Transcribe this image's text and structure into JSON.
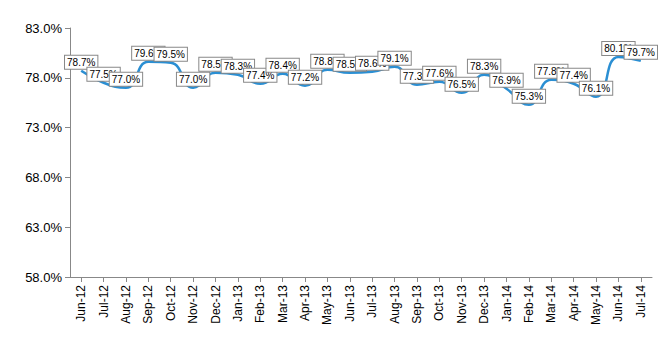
{
  "chart_data": {
    "type": "line",
    "categories": [
      "Jun-12",
      "Jul-12",
      "Aug-12",
      "Sep-12",
      "Oct-12",
      "Nov-12",
      "Dec-12",
      "Jan-13",
      "Feb-13",
      "Mar-13",
      "Apr-13",
      "May-13",
      "Jun-13",
      "Jul-13",
      "Aug-13",
      "Sep-13",
      "Oct-13",
      "Nov-13",
      "Dec-13",
      "Jan-14",
      "Feb-14",
      "Mar-14",
      "Apr-14",
      "May-14",
      "Jun-14",
      "Jul-14"
    ],
    "values": [
      78.7,
      77.5,
      77.0,
      79.6,
      79.5,
      77.0,
      78.5,
      78.3,
      77.4,
      78.4,
      77.2,
      78.8,
      78.5,
      78.6,
      79.1,
      77.3,
      77.6,
      76.5,
      78.3,
      76.9,
      75.3,
      77.8,
      77.4,
      76.1,
      80.1,
      79.7
    ],
    "value_labels": [
      "78.7%",
      "77.5%",
      "77.0%",
      "79.6%",
      "79.5%",
      "77.0%",
      "78.5%",
      "78.3%",
      "77.4%",
      "78.4%",
      "77.2%",
      "78.8%",
      "78.5%",
      "78.6%",
      "79.1%",
      "77.3%",
      "77.6%",
      "76.5%",
      "78.3%",
      "76.9%",
      "75.3%",
      "77.8%",
      "77.4%",
      "76.1%",
      "80.1%",
      "79.7%"
    ],
    "color": "#2b8fd3",
    "ylim": [
      58,
      83
    ],
    "yticks": [
      {
        "value": 58,
        "label": "58.0%"
      },
      {
        "value": 63,
        "label": "63.0%"
      },
      {
        "value": 68,
        "label": "68.0%"
      },
      {
        "value": 73,
        "label": "73.0%"
      },
      {
        "value": 78,
        "label": "78.0%"
      },
      {
        "value": 83,
        "label": "83.0%"
      }
    ],
    "grid": false,
    "data_labels": true
  }
}
